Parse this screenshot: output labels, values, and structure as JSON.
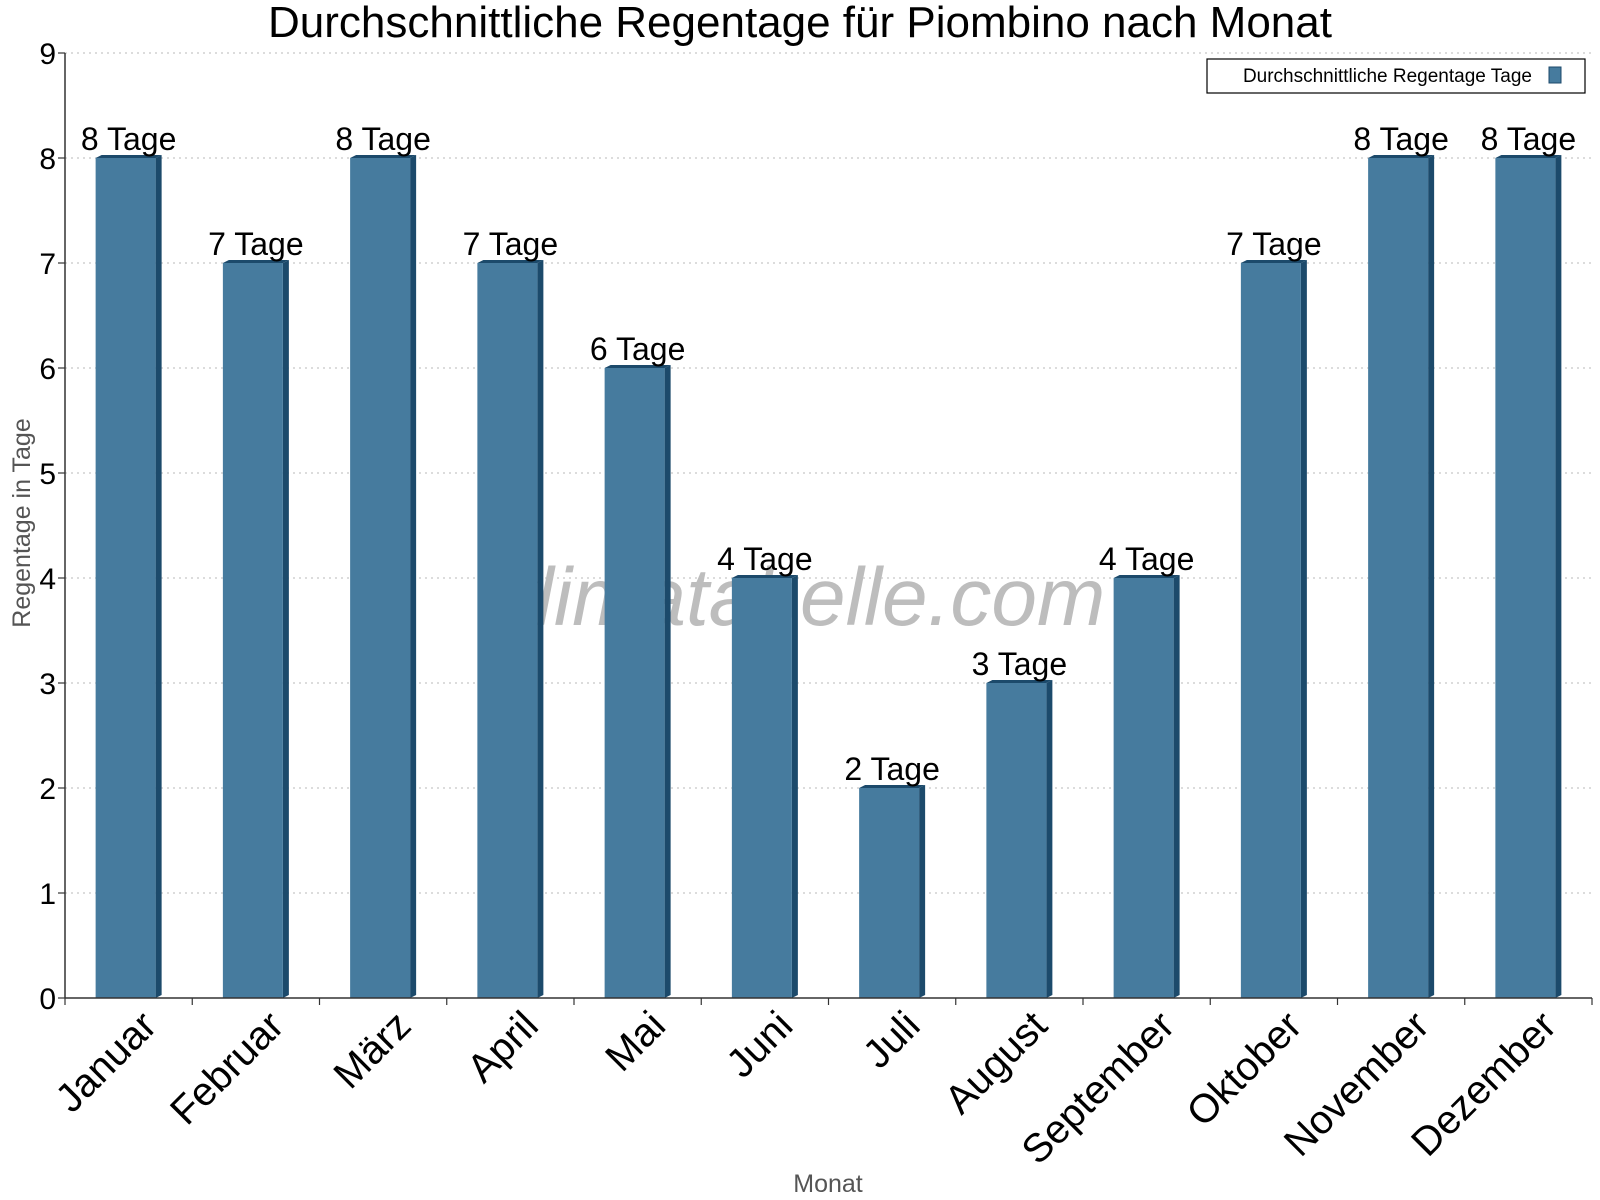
{
  "chart_data": {
    "type": "bar",
    "title": "Durchschnittliche Regentage für Piombino nach Monat",
    "xlabel": "Monat",
    "ylabel": "Regentage in Tage",
    "ylim": [
      0,
      9
    ],
    "yticks": [
      0,
      1,
      2,
      3,
      4,
      5,
      6,
      7,
      8,
      9
    ],
    "grid": true,
    "legend_position": "top-right",
    "categories": [
      "Januar",
      "Februar",
      "März",
      "April",
      "Mai",
      "Juni",
      "Juli",
      "August",
      "September",
      "Oktober",
      "November",
      "Dezember"
    ],
    "series": [
      {
        "name": "Durchschnittliche Regentage Tage",
        "color": "#467b9e",
        "values": [
          8,
          7,
          8,
          7,
          6,
          4,
          2,
          3,
          4,
          7,
          8,
          8
        ],
        "data_labels": [
          "8 Tage",
          "7 Tage",
          "8 Tage",
          "7 Tage",
          "6 Tage",
          "4 Tage",
          "2 Tage",
          "3 Tage",
          "4 Tage",
          "7 Tage",
          "8 Tage",
          "8 Tage"
        ]
      }
    ]
  },
  "watermark": "klimatabelle.com"
}
